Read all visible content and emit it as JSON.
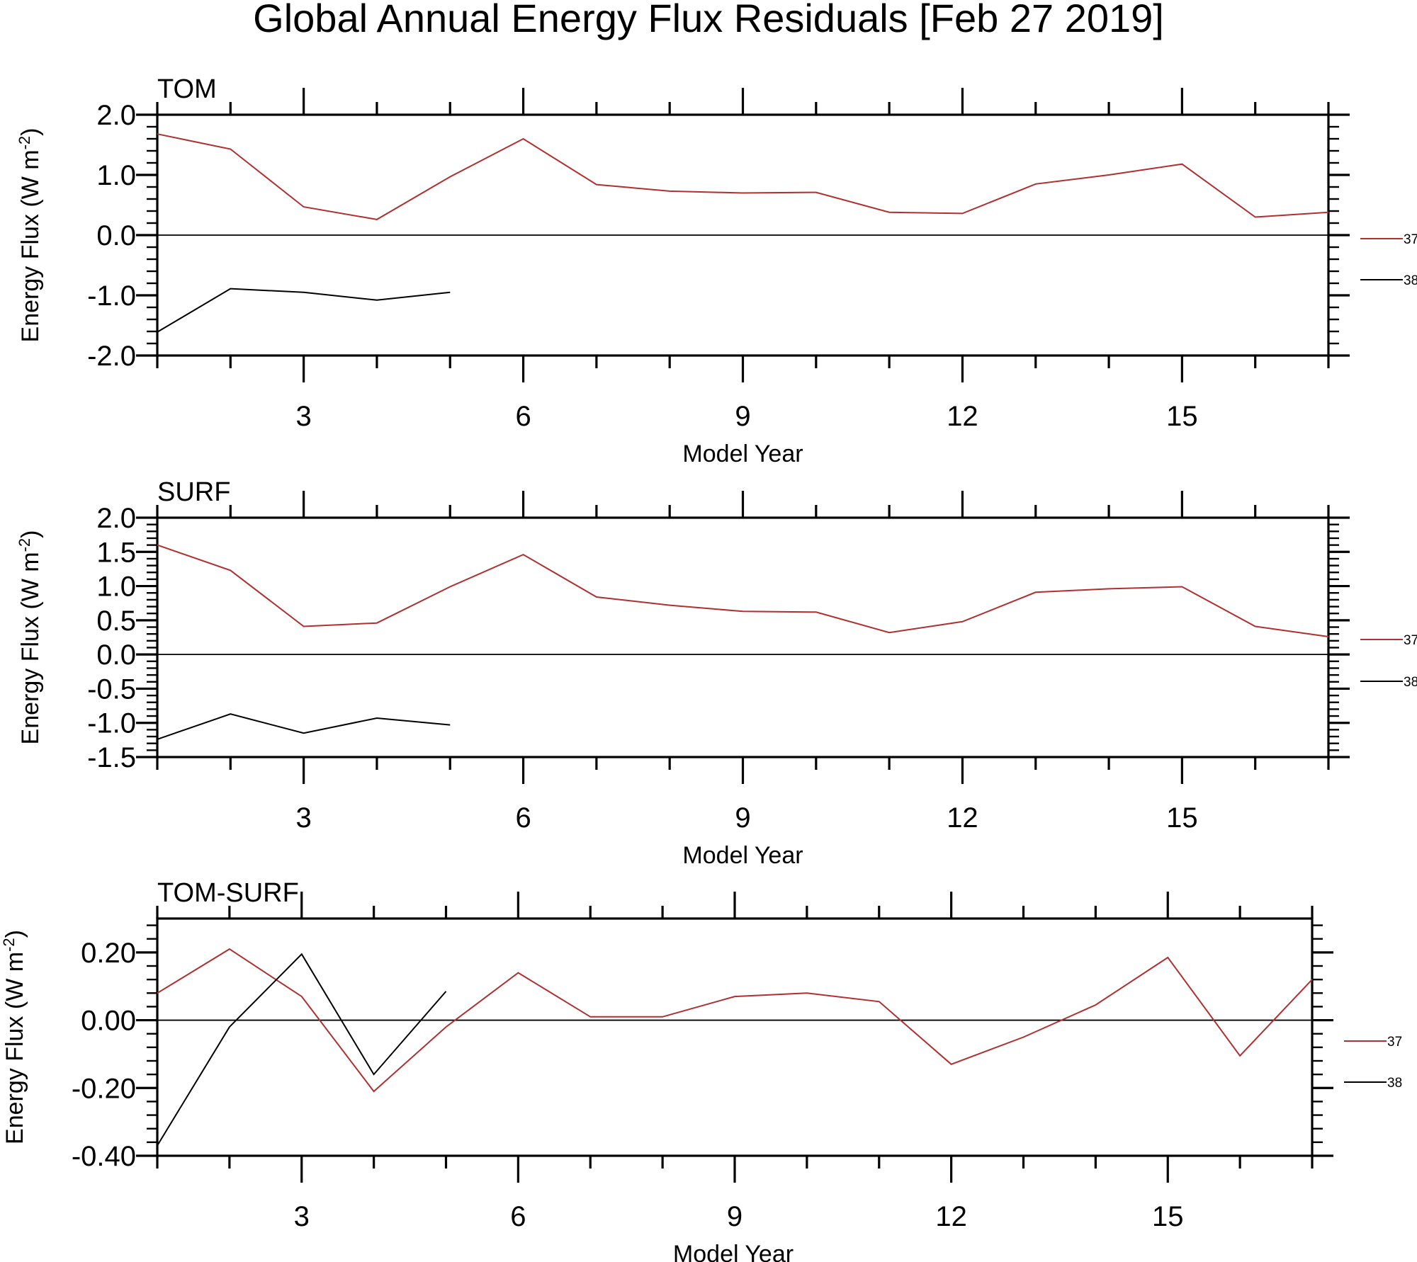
{
  "figure_title": "Global Annual Energy Flux Residuals [Feb 27 2019]",
  "colors": {
    "series_37": "#b03030",
    "series_38": "#000000",
    "axis": "#000000"
  },
  "chart_data": [
    {
      "type": "line",
      "title": "TOM",
      "xlabel": "Model Year",
      "ylabel": "Energy Flux (W m",
      "ylabel_sup": "-2",
      "ylabel_tail": ")",
      "xlim": [
        1,
        17
      ],
      "ylim": [
        -2.0,
        2.0
      ],
      "xticks": [
        3,
        6,
        9,
        12,
        15
      ],
      "xtick_labels": [
        "3",
        "6",
        "9",
        "12",
        "15"
      ],
      "yticks": [
        -2.0,
        -1.0,
        0.0,
        1.0,
        2.0
      ],
      "ytick_labels": [
        "-2.0",
        "-1.0",
        "0.0",
        "1.0",
        "2.0"
      ],
      "zero_line": true,
      "series": [
        {
          "name": "37",
          "color": "#b03030",
          "x": [
            1,
            2,
            3,
            4,
            5,
            6,
            7,
            8,
            9,
            10,
            11,
            12,
            13,
            14,
            15,
            16,
            17
          ],
          "values": [
            1.68,
            1.43,
            0.47,
            0.26,
            0.97,
            1.6,
            0.84,
            0.73,
            0.7,
            0.71,
            0.38,
            0.36,
            0.85,
            1.0,
            1.18,
            0.3,
            0.38
          ]
        },
        {
          "name": "38",
          "color": "#000000",
          "x": [
            1,
            2,
            3,
            4,
            5
          ],
          "values": [
            -1.61,
            -0.89,
            -0.95,
            -1.08,
            -0.95
          ]
        }
      ]
    },
    {
      "type": "line",
      "title": "SURF",
      "xlabel": "Model Year",
      "ylabel": "Energy Flux (W m",
      "ylabel_sup": "-2",
      "ylabel_tail": ")",
      "xlim": [
        1,
        17
      ],
      "ylim": [
        -1.5,
        2.0
      ],
      "xticks": [
        3,
        6,
        9,
        12,
        15
      ],
      "xtick_labels": [
        "3",
        "6",
        "9",
        "12",
        "15"
      ],
      "yticks": [
        -1.5,
        -1.0,
        -0.5,
        0.0,
        0.5,
        1.0,
        1.5,
        2.0
      ],
      "ytick_labels": [
        "-1.5",
        "-1.0",
        "-0.5",
        "0.0",
        "0.5",
        "1.0",
        "1.5",
        "2.0"
      ],
      "zero_line": true,
      "series": [
        {
          "name": "37",
          "color": "#b03030",
          "x": [
            1,
            2,
            3,
            4,
            5,
            6,
            7,
            8,
            9,
            10,
            11,
            12,
            13,
            14,
            15,
            16,
            17
          ],
          "values": [
            1.6,
            1.23,
            0.41,
            0.46,
            0.99,
            1.46,
            0.84,
            0.72,
            0.63,
            0.62,
            0.32,
            0.48,
            0.91,
            0.96,
            0.99,
            0.41,
            0.26
          ]
        },
        {
          "name": "38",
          "color": "#000000",
          "x": [
            1,
            2,
            3,
            4,
            5
          ],
          "values": [
            -1.24,
            -0.87,
            -1.15,
            -0.93,
            -1.03
          ]
        }
      ]
    },
    {
      "type": "line",
      "title": "TOM-SURF",
      "xlabel": "Model Year",
      "ylabel": "Energy Flux (W m",
      "ylabel_sup": "-2",
      "ylabel_tail": ")",
      "xlim": [
        1,
        17
      ],
      "ylim": [
        -0.4,
        0.3
      ],
      "xticks": [
        3,
        6,
        9,
        12,
        15
      ],
      "xtick_labels": [
        "3",
        "6",
        "9",
        "12",
        "15"
      ],
      "yticks": [
        -0.4,
        -0.2,
        0.0,
        0.2
      ],
      "ytick_labels": [
        "-0.40",
        "-0.20",
        "0.00",
        "0.20"
      ],
      "zero_line": true,
      "series": [
        {
          "name": "37",
          "color": "#b03030",
          "x": [
            1,
            2,
            3,
            4,
            5,
            6,
            7,
            8,
            9,
            10,
            11,
            12,
            13,
            14,
            15,
            16,
            17
          ],
          "values": [
            0.08,
            0.21,
            0.07,
            -0.21,
            -0.02,
            0.14,
            0.01,
            0.01,
            0.07,
            0.08,
            0.055,
            -0.13,
            -0.05,
            0.045,
            0.185,
            -0.105,
            0.12
          ]
        },
        {
          "name": "38",
          "color": "#000000",
          "x": [
            1,
            2,
            3,
            4,
            5
          ],
          "values": [
            -0.37,
            -0.02,
            0.195,
            -0.16,
            0.085
          ]
        }
      ]
    }
  ]
}
